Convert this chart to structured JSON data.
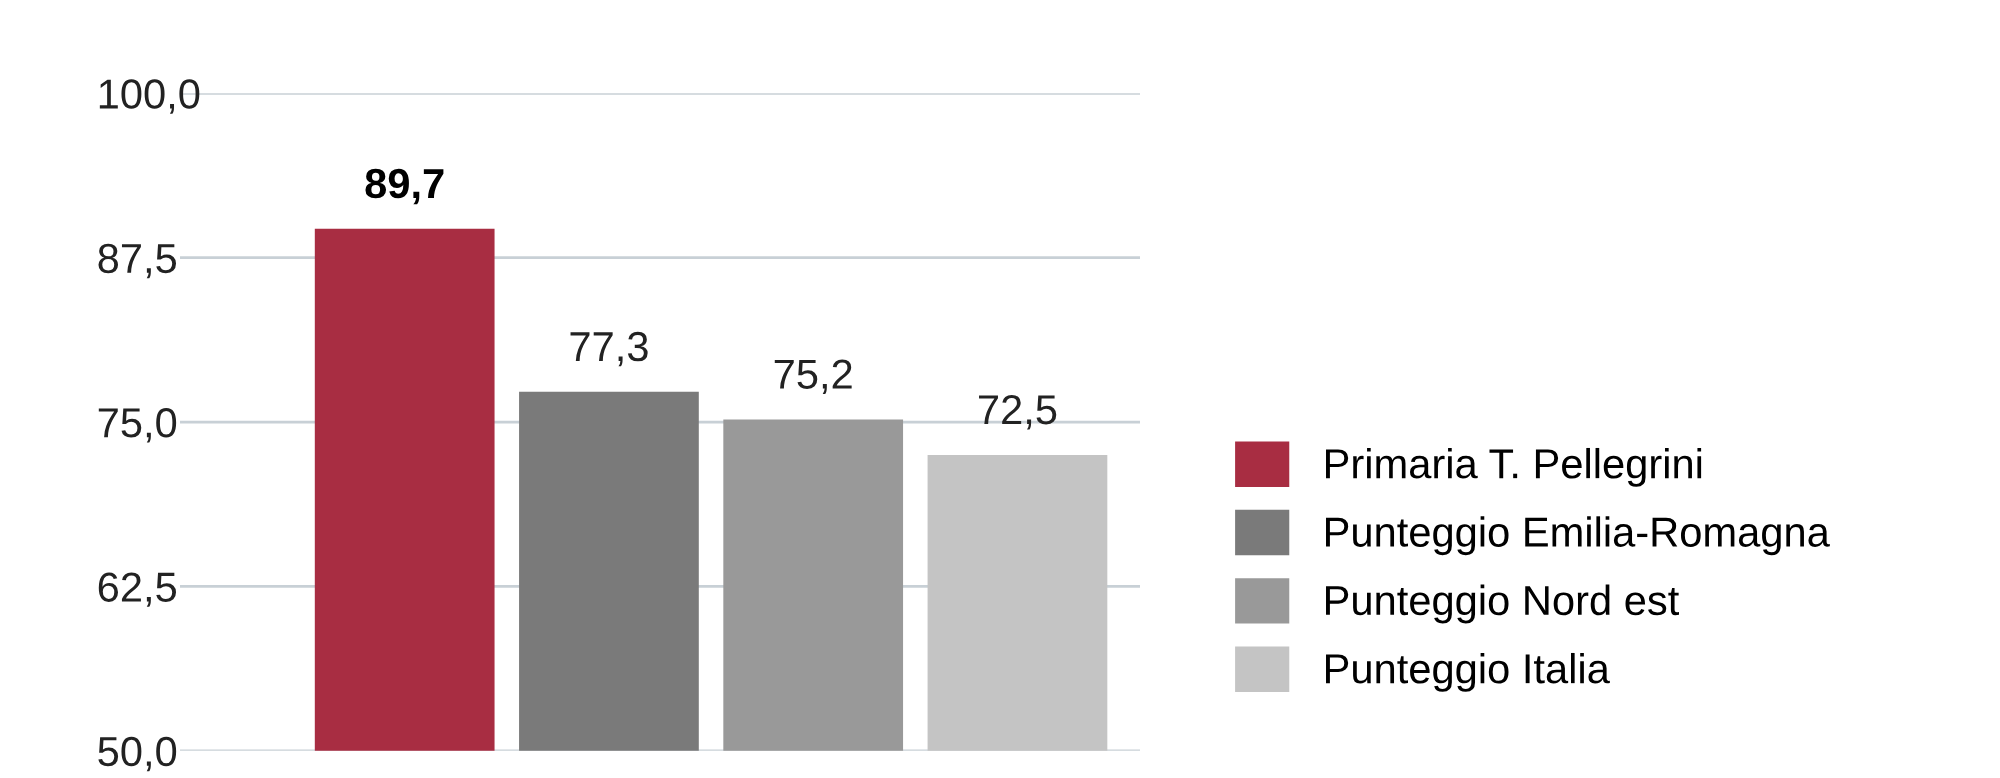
{
  "chart_data": {
    "type": "bar",
    "categories": [
      null
    ],
    "series": [
      {
        "name": "Primaria T. Pellegrini",
        "color": "#a82d42",
        "values": [
          89.7
        ],
        "value_labels": [
          "89,7"
        ]
      },
      {
        "name": "Punteggio Emilia-Romagna",
        "color": "#7a7a7a",
        "values": [
          77.3
        ],
        "value_labels": [
          "77,3"
        ]
      },
      {
        "name": "Punteggio Nord est",
        "color": "#999999",
        "values": [
          75.2
        ],
        "value_labels": [
          "75,2"
        ]
      },
      {
        "name": "Punteggio Italia",
        "color": "#c4c4c4",
        "values": [
          72.5
        ],
        "value_labels": [
          "72,5"
        ]
      }
    ],
    "ylim": [
      50,
      100
    ],
    "yticks": [
      {
        "value": 50,
        "label": "50,0"
      },
      {
        "value": 62.5,
        "label": "62,5"
      },
      {
        "value": 75,
        "label": "75,0"
      },
      {
        "value": 87.5,
        "label": "87,5"
      },
      {
        "value": 100,
        "label": "100,0"
      }
    ],
    "grid": "y",
    "legend": "right"
  }
}
